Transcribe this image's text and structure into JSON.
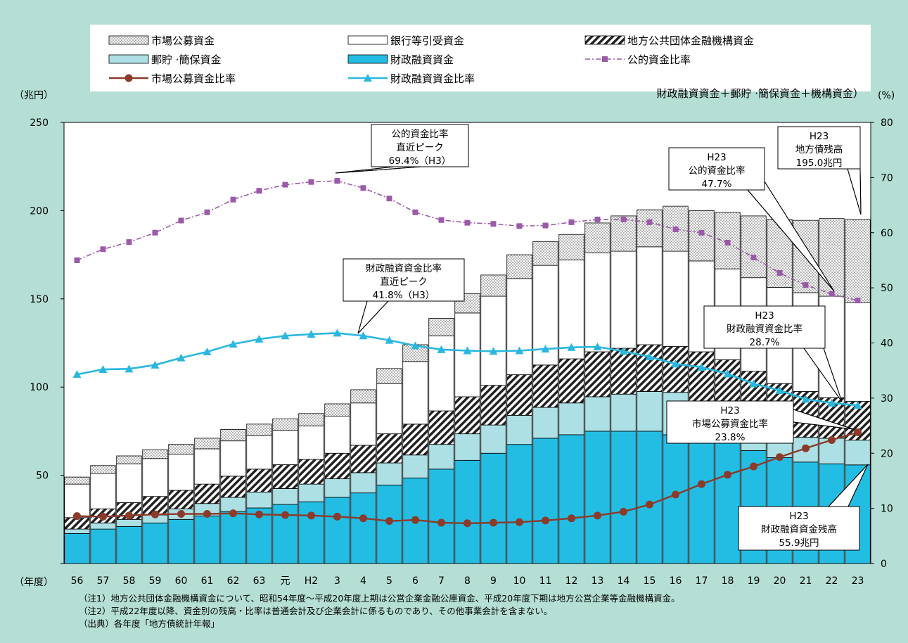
{
  "units": {
    "left": "（兆円）",
    "right": "(%)",
    "x": "（年度）"
  },
  "notes": [
    "（注1）地方公共団体金融機構資金について、昭和54年度～平成20年度上期は公営企業金融公庫資金、平成20年度下期は地方公営企業等金融機構資金。",
    "（注2）平成22年度以降、資金別の残高・比率は普通会計及び企業会計に係るものであり、その他事業会計を含まない。",
    "（出典）各年度「地方債統計年報」"
  ],
  "legend": {
    "items": [
      {
        "label": "市場公募資金",
        "kind": "dots"
      },
      {
        "label": "銀行等引受資金",
        "kind": "white"
      },
      {
        "label": "地方公共団体金融機構資金",
        "kind": "hatch"
      },
      {
        "label": "郵貯 ·簡保資金",
        "kind": "lightblue"
      },
      {
        "label": "財政融資資金",
        "kind": "blue"
      },
      {
        "label": "公的資金比率",
        "kind": "line-public"
      },
      {
        "label": "市場公募資金比率",
        "kind": "line-market"
      },
      {
        "label": "財政融資資金比率",
        "kind": "line-fiscal"
      }
    ],
    "note": "財政融資資金＋郵貯 ·簡保資金＋機構資金）"
  },
  "annotations": [
    {
      "lines": [
        "公的資金比率",
        "直近ピーク",
        "69.4%（H3）"
      ]
    },
    {
      "lines": [
        "財政融資資金比率",
        "直近ピーク",
        "41.8%（H3）"
      ]
    },
    {
      "lines": [
        "H23",
        "公的資金比率",
        "47.7%"
      ]
    },
    {
      "lines": [
        "H23",
        "地方債残高",
        "195.0兆円"
      ]
    },
    {
      "lines": [
        "H23",
        "財政融資資金比率",
        "28.7%"
      ]
    },
    {
      "lines": [
        "H23",
        "市場公募資金比率",
        "23.8%"
      ]
    },
    {
      "lines": [
        "H23",
        "財政融資資金残高",
        "55.9兆円"
      ]
    }
  ],
  "colors": {
    "background": "#b5dfd5",
    "fiscal": "#23bde3",
    "postal": "#ade0e4",
    "public_line": "#9b5aa8",
    "market_line": "#8c3a2a",
    "fiscal_line": "#2ab7df"
  },
  "chart_data": {
    "type": "bar",
    "stacked": true,
    "categories": [
      "56",
      "57",
      "58",
      "59",
      "60",
      "61",
      "62",
      "63",
      "元",
      "H2",
      "3",
      "4",
      "5",
      "6",
      "7",
      "8",
      "9",
      "10",
      "11",
      "12",
      "13",
      "14",
      "15",
      "16",
      "17",
      "18",
      "19",
      "20",
      "21",
      "22",
      "23"
    ],
    "y_left": {
      "ticks": [
        0,
        50,
        100,
        150,
        200,
        250
      ],
      "ylim": [
        0,
        250
      ]
    },
    "y_right": {
      "ticks": [
        0,
        10,
        20,
        30,
        40,
        50,
        60,
        70,
        80
      ],
      "ylim": [
        0,
        80
      ]
    },
    "series": [
      {
        "name": "財政融資資金",
        "kind": "bar",
        "values": [
          17,
          19.5,
          21,
          23,
          25,
          27,
          29.5,
          31.5,
          33.5,
          35,
          37.5,
          40,
          44.5,
          48.5,
          53.5,
          58.5,
          62.5,
          67.5,
          71,
          73,
          75,
          75,
          75,
          73,
          72,
          70,
          64,
          60,
          57.5,
          56.5,
          55.9
        ]
      },
      {
        "name": "郵貯 ·簡保資金",
        "kind": "bar",
        "values": [
          2.5,
          3.5,
          4,
          4.5,
          6,
          7,
          8,
          9,
          9,
          10,
          10.5,
          11.5,
          12.5,
          13,
          14,
          15,
          16,
          16.5,
          17.5,
          18,
          19.5,
          21,
          22.5,
          24,
          18,
          11.5,
          15,
          13,
          14,
          14.5,
          14
        ]
      },
      {
        "name": "地方公共団体金融機構資金",
        "kind": "bar",
        "values": [
          6.5,
          8,
          9.5,
          10.5,
          10.5,
          11,
          12,
          13,
          13.5,
          14,
          14.5,
          15.5,
          16.5,
          17.5,
          19,
          21,
          22.5,
          23,
          24,
          25,
          25.5,
          26,
          26.5,
          26,
          30,
          34,
          30,
          29,
          26,
          23,
          22
        ]
      },
      {
        "name": "銀行等引受資金",
        "kind": "bar",
        "values": [
          19,
          20,
          22,
          21.5,
          20.5,
          20,
          20,
          19,
          19.5,
          19,
          21,
          24,
          28.5,
          35.5,
          42.5,
          47.5,
          50.5,
          54.5,
          56.5,
          56,
          56,
          55,
          55.5,
          54,
          51.5,
          51.5,
          53,
          54.5,
          56,
          57.5,
          56
        ]
      },
      {
        "name": "市場公募資金",
        "kind": "bar",
        "values": [
          4,
          4.5,
          4.5,
          5,
          5.5,
          6,
          6.5,
          6.5,
          6.5,
          7,
          7,
          7.5,
          8.5,
          9.5,
          10,
          11,
          12,
          13.5,
          13.5,
          14.5,
          17,
          20,
          21,
          25.5,
          28.5,
          32,
          35,
          38.5,
          41,
          44,
          47.1
        ]
      },
      {
        "name": "公的資金比率",
        "kind": "line",
        "axis": "right",
        "values": [
          55,
          57,
          58.3,
          60,
          62.2,
          63.7,
          66,
          67.6,
          68.7,
          69.2,
          69.4,
          68.1,
          66.2,
          63.7,
          62.3,
          61.8,
          61.6,
          61.2,
          61.3,
          61.9,
          62.4,
          62.4,
          61.9,
          60.6,
          60,
          58.2,
          55.5,
          52.7,
          50.5,
          48.9,
          47.7
        ]
      },
      {
        "name": "市場公募資金比率",
        "kind": "line",
        "axis": "right",
        "values": [
          8.6,
          8.5,
          8.7,
          8.9,
          9,
          9,
          9.1,
          8.9,
          8.8,
          8.7,
          8.5,
          8.2,
          7.7,
          7.9,
          7.4,
          7.3,
          7.4,
          7.5,
          7.8,
          8.2,
          8.7,
          9.4,
          10.7,
          12.5,
          14.4,
          16.1,
          17.6,
          19.3,
          20.9,
          22.4,
          23.8
        ]
      },
      {
        "name": "財政融資資金比率",
        "kind": "line",
        "axis": "right",
        "values": [
          34.3,
          35.2,
          35.3,
          36,
          37.3,
          38.4,
          39.8,
          40.7,
          41.3,
          41.6,
          41.8,
          41.3,
          40.5,
          39.5,
          38.8,
          38.6,
          38.5,
          38.6,
          38.9,
          39.2,
          39.3,
          38.5,
          37.5,
          36.2,
          35.6,
          34.4,
          32.6,
          31.4,
          29.8,
          29.1,
          28.7
        ]
      }
    ]
  }
}
